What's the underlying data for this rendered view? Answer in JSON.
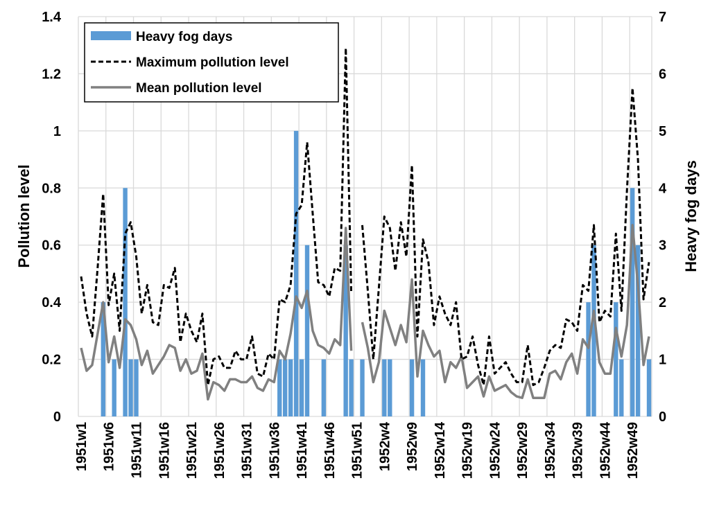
{
  "chart_data": {
    "type": "bar+line",
    "title": "",
    "ylabel": "Pollution level",
    "y2label": "Heavy fog days",
    "ylim": [
      0,
      1.4
    ],
    "y2lim": [
      0,
      7
    ],
    "yticks": [
      "0",
      "0.2",
      "0.4",
      "0.6",
      "0.8",
      "1",
      "1.2",
      "1.4"
    ],
    "y2ticks": [
      "0",
      "1",
      "2",
      "3",
      "4",
      "5",
      "6",
      "7"
    ],
    "grid": true,
    "legend_position": "top-left",
    "xtick_every": 5,
    "colors": {
      "fog": "#5b9bd5",
      "max": "#000000",
      "mean": "#808080"
    },
    "categories": [
      "1951w1",
      "1951w2",
      "1951w3",
      "1951w4",
      "1951w5",
      "1951w6",
      "1951w7",
      "1951w8",
      "1951w9",
      "1951w10",
      "1951w11",
      "1951w12",
      "1951w13",
      "1951w14",
      "1951w15",
      "1951w16",
      "1951w17",
      "1951w18",
      "1951w19",
      "1951w20",
      "1951w21",
      "1951w22",
      "1951w23",
      "1951w24",
      "1951w25",
      "1951w26",
      "1951w27",
      "1951w28",
      "1951w29",
      "1951w30",
      "1951w31",
      "1951w32",
      "1951w33",
      "1951w34",
      "1951w35",
      "1951w36",
      "1951w37",
      "1951w38",
      "1951w39",
      "1951w40",
      "1951w41",
      "1951w42",
      "1951w43",
      "1951w44",
      "1951w45",
      "1951w46",
      "1951w47",
      "1951w48",
      "1951w49",
      "1951w50",
      "1951w51",
      "1951w52",
      "1952w1",
      "1952w2",
      "1952w3",
      "1952w4",
      "1952w5",
      "1952w6",
      "1952w7",
      "1952w8",
      "1952w9",
      "1952w10",
      "1952w11",
      "1952w12",
      "1952w13",
      "1952w14",
      "1952w15",
      "1952w16",
      "1952w17",
      "1952w18",
      "1952w19",
      "1952w20",
      "1952w21",
      "1952w22",
      "1952w23",
      "1952w24",
      "1952w25",
      "1952w26",
      "1952w27",
      "1952w28",
      "1952w29",
      "1952w30",
      "1952w31",
      "1952w32",
      "1952w33",
      "1952w34",
      "1952w35",
      "1952w36",
      "1952w37",
      "1952w38",
      "1952w39",
      "1952w40",
      "1952w41",
      "1952w42",
      "1952w43",
      "1952w44",
      "1952w45",
      "1952w46",
      "1952w47",
      "1952w48",
      "1952w49",
      "1952w50",
      "1952w51",
      "1952w52"
    ],
    "series": [
      {
        "name": "Heavy fog days",
        "type": "bar",
        "axis": "right",
        "values": [
          0,
          0,
          0,
          0,
          2,
          0,
          1,
          0,
          4,
          1,
          1,
          0,
          0,
          0,
          0,
          0,
          0,
          0,
          0,
          0,
          0,
          0,
          0,
          0,
          0,
          0,
          0,
          0,
          0,
          0,
          0,
          0,
          0,
          0,
          0,
          0,
          1,
          1,
          1,
          5,
          1,
          3,
          0,
          0,
          1,
          0,
          0,
          0,
          3,
          1,
          0,
          1,
          0,
          0,
          0,
          1,
          1,
          0,
          0,
          0,
          1,
          0,
          1,
          0,
          0,
          0,
          0,
          0,
          0,
          0,
          0,
          0,
          0,
          0,
          0,
          0,
          0,
          0,
          0,
          0,
          0,
          0,
          0,
          0,
          0,
          0,
          0,
          0,
          0,
          0,
          0,
          0,
          2,
          3,
          0,
          0,
          0,
          2,
          1,
          0,
          4,
          3,
          0,
          1
        ]
      },
      {
        "name": "Maximum pollution level",
        "type": "line",
        "style": "dashed",
        "axis": "left",
        "values": [
          0.49,
          0.36,
          0.28,
          0.52,
          0.78,
          0.39,
          0.5,
          0.3,
          0.64,
          0.68,
          0.56,
          0.36,
          0.46,
          0.33,
          0.32,
          0.46,
          0.45,
          0.52,
          0.26,
          0.36,
          0.3,
          0.26,
          0.36,
          0.11,
          0.2,
          0.21,
          0.17,
          0.17,
          0.23,
          0.2,
          0.2,
          0.28,
          0.15,
          0.14,
          0.22,
          0.2,
          0.41,
          0.4,
          0.46,
          0.71,
          0.74,
          0.96,
          0.71,
          0.47,
          0.46,
          0.42,
          0.52,
          0.51,
          1.29,
          0.43,
          null,
          0.67,
          0.44,
          0.2,
          0.45,
          0.7,
          0.66,
          0.51,
          0.68,
          0.56,
          0.88,
          0.28,
          0.62,
          0.54,
          0.32,
          0.42,
          0.36,
          0.32,
          0.4,
          0.2,
          0.21,
          0.28,
          0.18,
          0.11,
          0.28,
          0.15,
          0.17,
          0.19,
          0.15,
          0.12,
          0.12,
          0.25,
          0.11,
          0.12,
          0.17,
          0.23,
          0.25,
          0.24,
          0.34,
          0.33,
          0.3,
          0.46,
          0.44,
          0.67,
          0.33,
          0.37,
          0.35,
          0.64,
          0.37,
          0.79,
          1.15,
          0.9,
          0.41,
          0.54
        ]
      },
      {
        "name": "Mean pollution level",
        "type": "line",
        "style": "solid",
        "axis": "left",
        "values": [
          0.24,
          0.16,
          0.18,
          0.29,
          0.4,
          0.19,
          0.28,
          0.17,
          0.34,
          0.32,
          0.27,
          0.18,
          0.23,
          0.15,
          0.18,
          0.21,
          0.25,
          0.24,
          0.16,
          0.2,
          0.15,
          0.16,
          0.22,
          0.06,
          0.12,
          0.11,
          0.09,
          0.13,
          0.13,
          0.12,
          0.12,
          0.14,
          0.1,
          0.09,
          0.13,
          0.12,
          0.23,
          0.2,
          0.29,
          0.42,
          0.38,
          0.44,
          0.3,
          0.25,
          0.24,
          0.22,
          0.27,
          0.25,
          0.66,
          0.23,
          null,
          0.33,
          0.24,
          0.12,
          0.19,
          0.37,
          0.31,
          0.25,
          0.32,
          0.26,
          0.48,
          0.14,
          0.3,
          0.25,
          0.21,
          0.23,
          0.12,
          0.19,
          0.17,
          0.21,
          0.1,
          0.12,
          0.14,
          0.07,
          0.14,
          0.09,
          0.1,
          0.11,
          0.085,
          0.07,
          0.065,
          0.13,
          0.065,
          0.065,
          0.065,
          0.15,
          0.16,
          0.13,
          0.19,
          0.22,
          0.15,
          0.27,
          0.24,
          0.37,
          0.19,
          0.15,
          0.15,
          0.31,
          0.21,
          0.32,
          0.67,
          0.46,
          0.18,
          0.28
        ]
      }
    ]
  }
}
